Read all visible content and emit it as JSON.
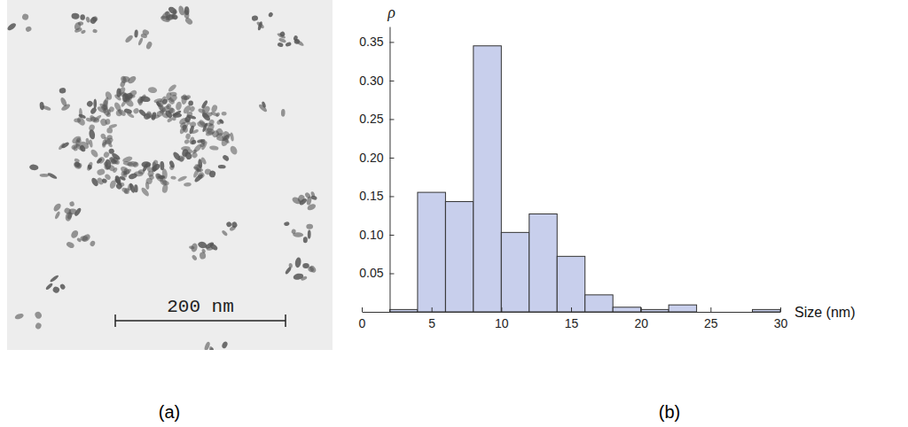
{
  "chart_data": {
    "type": "histogram",
    "x_label": "Size (nm)",
    "y_label": "ρ",
    "bins": [
      2,
      4,
      6,
      8,
      10,
      12,
      14,
      16,
      18,
      20,
      22,
      24,
      26,
      28,
      30
    ],
    "values": [
      0.003,
      0.155,
      0.143,
      0.345,
      0.103,
      0.127,
      0.072,
      0.022,
      0.006,
      0.003,
      0.009,
      0,
      0,
      0.003
    ],
    "color": "#c8cfec",
    "xlim": [
      0,
      30
    ],
    "xticks": [
      0,
      5,
      10,
      15,
      20,
      25,
      30
    ],
    "ylim": [
      0,
      0.37
    ],
    "yticks": [
      0.05,
      {
        "value": 0.1,
        "label": "0.10"
      },
      0.15,
      {
        "value": 0.2,
        "label": "0.20"
      },
      0.25,
      {
        "value": 0.3,
        "label": "0.30"
      },
      0.35
    ],
    "grid": false
  },
  "figure": {
    "panels": [
      {
        "label": "(a)",
        "scale_bar": "200 nm"
      },
      {
        "label": "(b)"
      }
    ]
  }
}
